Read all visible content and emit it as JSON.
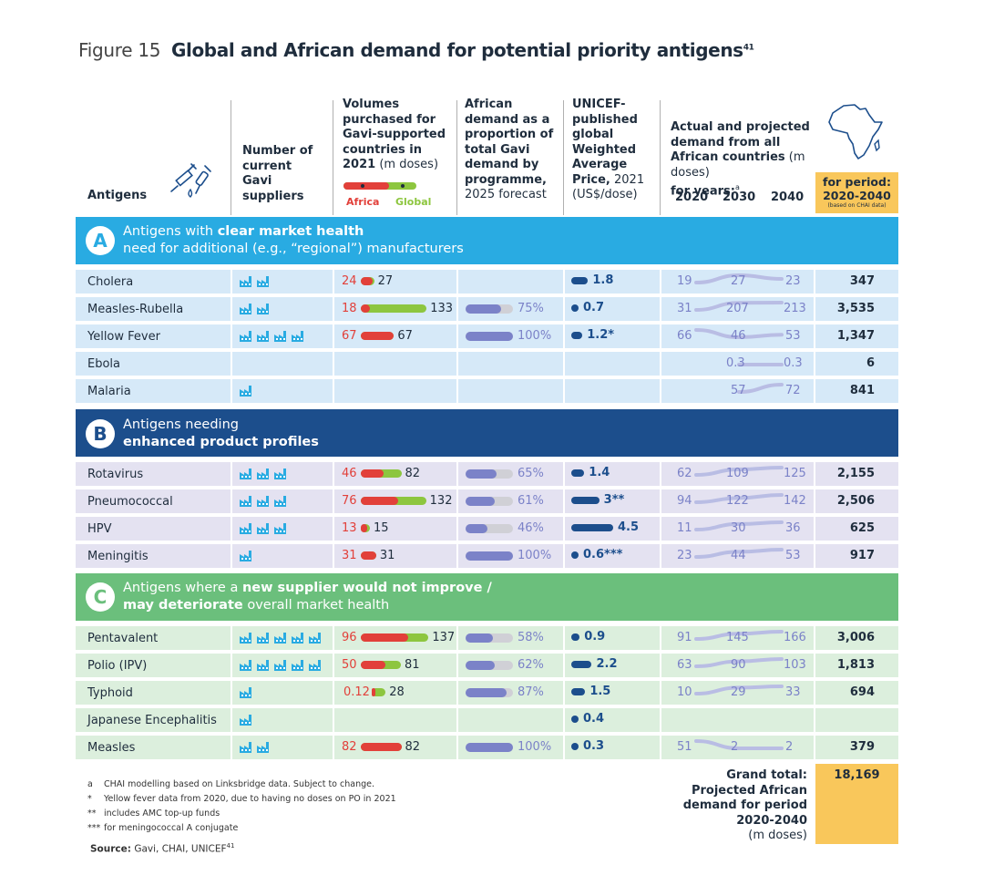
{
  "figure_label": "Figure 15",
  "title": "Global and African demand for potential priority antigens",
  "title_sup": "41",
  "headers": {
    "antigens": "Antigens",
    "suppliers": "Number of current Gavi suppliers",
    "volumes_bold": "Volumes purchased for Gavi-supported countries in 2021",
    "volumes_unit": "(m doses)",
    "legend_africa": "Africa",
    "legend_global": "Global",
    "african_bold": "African demand as a proportion of total Gavi demand by programme,",
    "african_rest": "2025 forecast",
    "unicef_bold": "UNICEF-published global Weighted Average Price,",
    "unicef_rest": "2021 (US$/dose)",
    "projected_bold": "Actual and projected demand from all African countries",
    "projected_unit": "(m doses)",
    "projected_years": "for years:",
    "years_sup": "a",
    "year_2020": "2020",
    "year_2030": "2030",
    "year_2040": "2040",
    "period_line1": "for period:",
    "period_line2": "2020-2040",
    "period_note": "(based on CHAI data)"
  },
  "colors": {
    "band_a": "#29abe2",
    "band_b": "#1c4e8c",
    "band_c": "#6bbf7c",
    "row_a": "#d6e9f8",
    "row_b": "#e4e2f1",
    "row_c": "#dcefdd",
    "africa_red": "#e2403a",
    "global_green": "#8dc63f",
    "proportion_purple": "#7b82c8",
    "price_navy": "#1c4e8c",
    "accent_orange": "#f9c75b"
  },
  "groups": [
    {
      "letter": "A",
      "text_plain": "Antigens with ",
      "text_bold": "clear market health",
      "text_line2": "need for additional (e.g., “regional”) manufacturers"
    },
    {
      "letter": "B",
      "text_plain": "Antigens needing",
      "text_bold": "enhanced product profiles",
      "text_line2": ""
    },
    {
      "letter": "C",
      "text_plain": "Antigens where a ",
      "text_bold": "new supplier would not improve /",
      "text_line2_bold": "may deteriorate",
      "text_line2": " overall market health"
    }
  ],
  "chart_data": {
    "type": "table",
    "columns": [
      "Antigen",
      "Gavi suppliers",
      "Africa volume 2021 (m doses)",
      "Global volume 2021 (m doses)",
      "African share 2025 (%)",
      "UNICEF WAP 2021 (US$/dose)",
      "2020",
      "2030",
      "2040",
      "2020-2040 total"
    ],
    "rows": [
      {
        "group": "A",
        "name": "Cholera",
        "suppliers": 2,
        "africa": "24",
        "global": "27",
        "share": null,
        "share_label": "",
        "price": 1.8,
        "price_label": "1.8",
        "y2020": "19",
        "y2030": "27",
        "y2040": "23",
        "total": "347"
      },
      {
        "group": "A",
        "name": "Measles-Rubella",
        "suppliers": 2,
        "africa": "18",
        "global": "133",
        "share": 75,
        "share_label": "75%",
        "price": 0.7,
        "price_label": "0.7",
        "y2020": "31",
        "y2030": "207",
        "y2040": "213",
        "total": "3,535"
      },
      {
        "group": "A",
        "name": "Yellow Fever",
        "suppliers": 4,
        "africa": "67",
        "global": "67",
        "share": 100,
        "share_label": "100%",
        "price": 1.2,
        "price_label": "1.2*",
        "y2020": "66",
        "y2030": "46",
        "y2040": "53",
        "total": "1,347"
      },
      {
        "group": "A",
        "name": "Ebola",
        "suppliers": 0,
        "africa": "",
        "global": "",
        "share": null,
        "share_label": "",
        "price": null,
        "price_label": "",
        "y2020": "",
        "y2030": "0.3",
        "y2040": "0.3",
        "total": "6"
      },
      {
        "group": "A",
        "name": "Malaria",
        "suppliers": 1,
        "africa": "",
        "global": "",
        "share": null,
        "share_label": "",
        "price": null,
        "price_label": "",
        "y2020": "",
        "y2030": "57",
        "y2040": "72",
        "total": "841"
      },
      {
        "group": "B",
        "name": "Rotavirus",
        "suppliers": 3,
        "africa": "46",
        "global": "82",
        "share": 65,
        "share_label": "65%",
        "price": 1.4,
        "price_label": "1.4",
        "y2020": "62",
        "y2030": "109",
        "y2040": "125",
        "total": "2,155"
      },
      {
        "group": "B",
        "name": "Pneumococcal",
        "suppliers": 3,
        "africa": "76",
        "global": "132",
        "share": 61,
        "share_label": "61%",
        "price": 3,
        "price_label": "3**",
        "y2020": "94",
        "y2030": "122",
        "y2040": "142",
        "total": "2,506"
      },
      {
        "group": "B",
        "name": "HPV",
        "suppliers": 3,
        "africa": "13",
        "global": "15",
        "share": 46,
        "share_label": "46%",
        "price": 4.5,
        "price_label": "4.5",
        "y2020": "11",
        "y2030": "30",
        "y2040": "36",
        "total": "625"
      },
      {
        "group": "B",
        "name": "Meningitis",
        "suppliers": 1,
        "africa": "31",
        "global": "31",
        "share": 100,
        "share_label": "100%",
        "price": 0.6,
        "price_label": "0.6***",
        "y2020": "23",
        "y2030": "44",
        "y2040": "53",
        "total": "917"
      },
      {
        "group": "C",
        "name": "Pentavalent",
        "suppliers": 5,
        "africa": "96",
        "global": "137",
        "share": 58,
        "share_label": "58%",
        "price": 0.9,
        "price_label": "0.9",
        "y2020": "91",
        "y2030": "145",
        "y2040": "166",
        "total": "3,006"
      },
      {
        "group": "C",
        "name": "Polio (IPV)",
        "suppliers": 5,
        "africa": "50",
        "global": "81",
        "share": 62,
        "share_label": "62%",
        "price": 2.2,
        "price_label": "2.2",
        "y2020": "63",
        "y2030": "90",
        "y2040": "103",
        "total": "1,813"
      },
      {
        "group": "C",
        "name": "Typhoid",
        "suppliers": 1,
        "africa": "0.12",
        "global": "28",
        "share": 87,
        "share_label": "87%",
        "price": 1.5,
        "price_label": "1.5",
        "y2020": "10",
        "y2030": "29",
        "y2040": "33",
        "total": "694"
      },
      {
        "group": "C",
        "name": "Japanese Encephalitis",
        "suppliers": 1,
        "africa": "",
        "global": "",
        "share": null,
        "share_label": "",
        "price": 0.4,
        "price_label": "0.4",
        "y2020": "",
        "y2030": "",
        "y2040": "",
        "total": ""
      },
      {
        "group": "C",
        "name": "Measles",
        "suppliers": 2,
        "africa": "82",
        "global": "82",
        "share": 100,
        "share_label": "100%",
        "price": 0.3,
        "price_label": "0.3",
        "y2020": "51",
        "y2030": "2",
        "y2040": "2",
        "total": "379"
      }
    ]
  },
  "grand_total": {
    "label1": "Grand total:",
    "label2": "Projected African",
    "label3": "demand for period",
    "label4": "2020-2040",
    "label5": "(m doses)",
    "value": "18,169"
  },
  "footnotes": [
    {
      "mark": "a",
      "text": "CHAI modelling based on Linksbridge data. Subject to change."
    },
    {
      "mark": "*",
      "text": "Yellow fever data from 2020, due to having no doses on PO in 2021"
    },
    {
      "mark": "**",
      "text": "includes AMC top-up funds"
    },
    {
      "mark": "***",
      "text": "for meningococcal A conjugate"
    }
  ],
  "source": {
    "label": "Source:",
    "text": "Gavi, CHAI, UNICEF",
    "sup": "41"
  }
}
